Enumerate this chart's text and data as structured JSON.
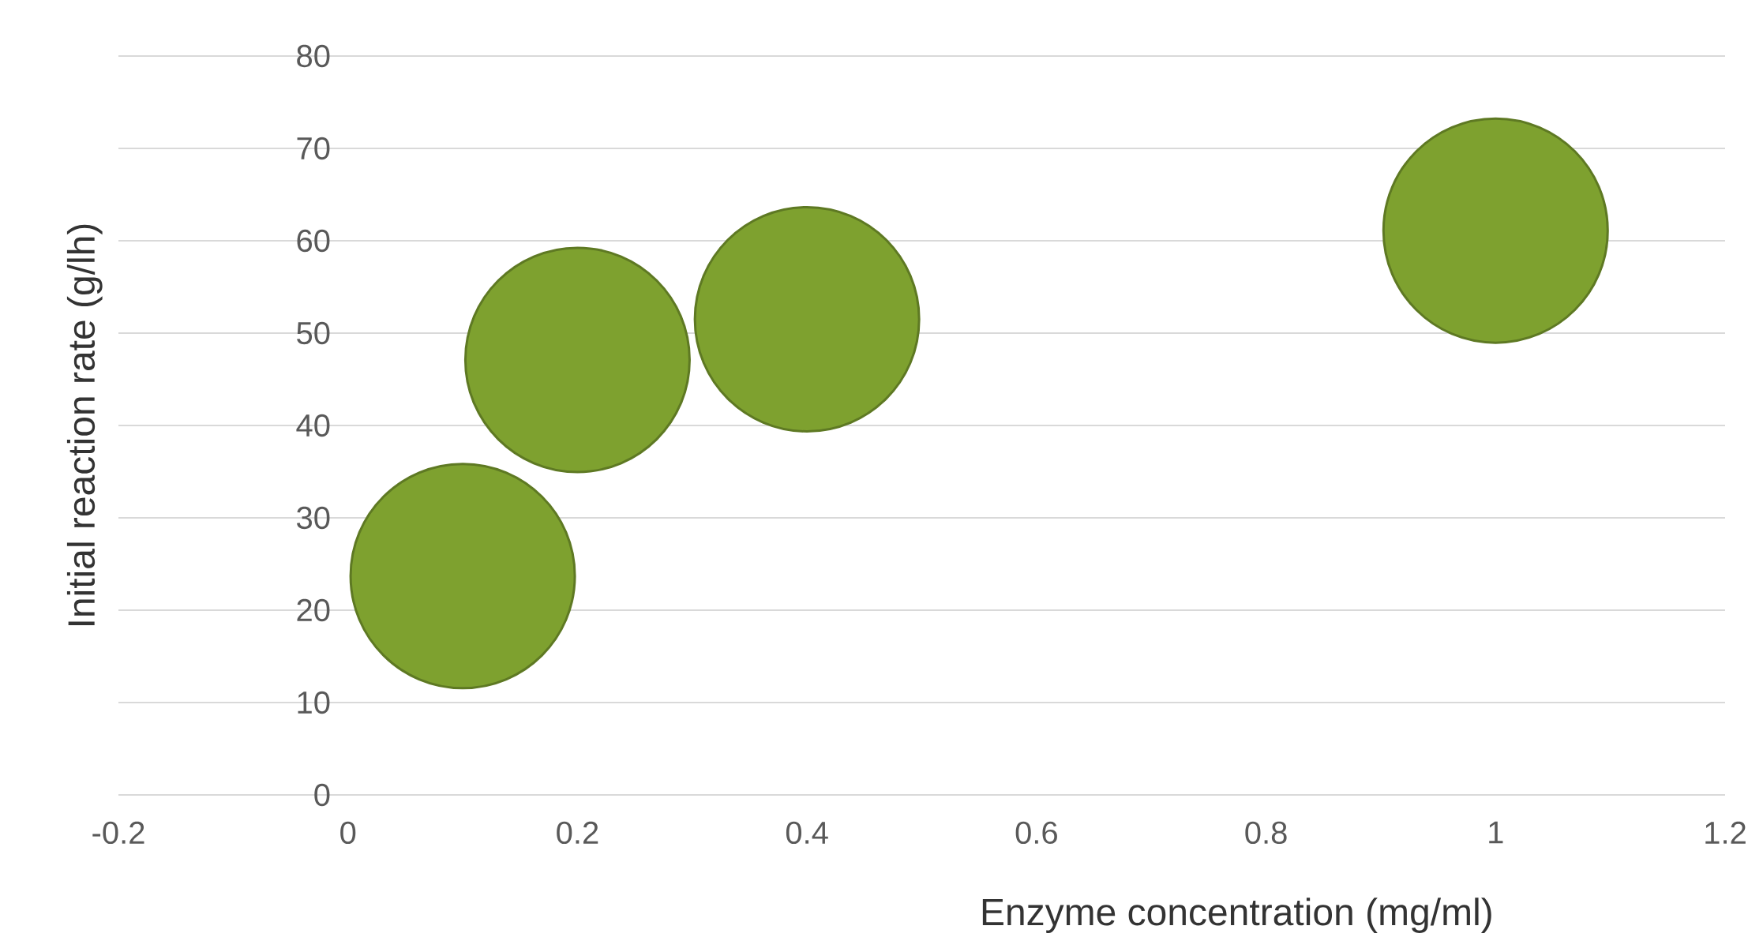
{
  "chart_data": {
    "type": "bubble",
    "xlabel": "Enzyme concentration (mg/ml)",
    "ylabel": "Initial reaction rate (g/lh)",
    "x": [
      0.1,
      0.2,
      0.4,
      1.0
    ],
    "values": [
      23.7,
      47.1,
      51.5,
      61.1
    ],
    "sizes": [
      1,
      1,
      1,
      1
    ],
    "color": "#7ea12f",
    "xlim": [
      -0.2,
      1.2
    ],
    "xticks": [
      -0.2,
      0,
      0.2,
      0.4,
      0.6,
      0.8,
      1,
      1.2
    ],
    "ylim": [
      0,
      80
    ],
    "yticks": [
      0,
      10,
      20,
      30,
      40,
      50,
      60,
      70,
      80
    ],
    "grid": "y"
  }
}
